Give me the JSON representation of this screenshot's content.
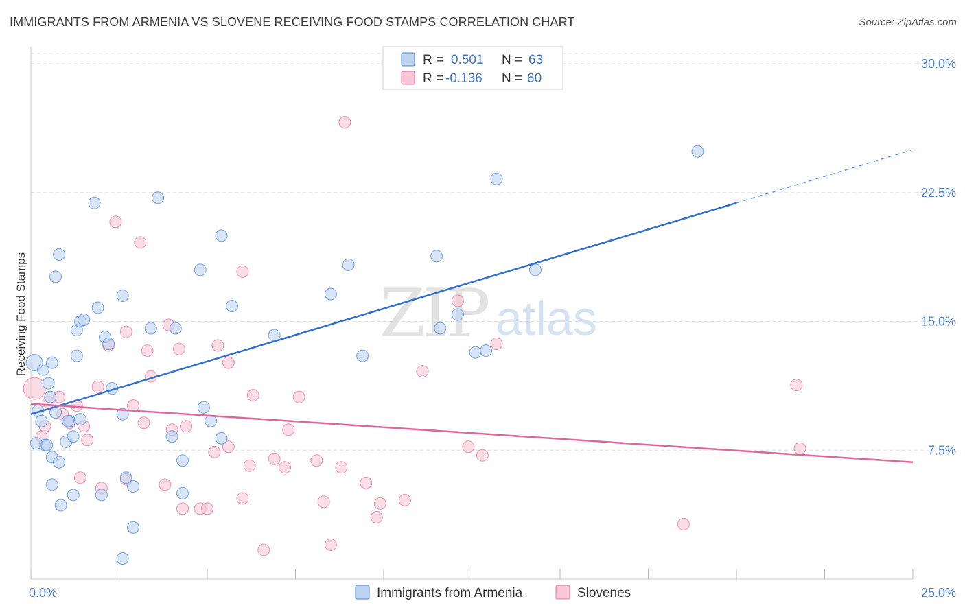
{
  "title": "IMMIGRANTS FROM ARMENIA VS SLOVENE RECEIVING FOOD STAMPS CORRELATION CHART",
  "source": "Source: ZipAtlas.com",
  "watermark": {
    "zip": "ZIP",
    "atlas": "atlas"
  },
  "colors": {
    "blue": "#4a86d8",
    "blue_fill": "#bcd3f2",
    "pink": "#e8709d",
    "pink_fill": "#f8c6d6",
    "grid": "#dddddd",
    "tick_text": "#4a7fd0"
  },
  "legend": {
    "rows": [
      {
        "r_label": "R =",
        "r_value": "0.501",
        "n_label": "N =",
        "n_value": "63"
      },
      {
        "r_label": "R =",
        "r_value": "-0.136",
        "n_label": "N =",
        "n_value": "60"
      }
    ]
  },
  "chart_data": {
    "type": "scatter",
    "xlabel": "",
    "ylabel": "Receiving Food Stamps",
    "xlim": [
      0,
      25
    ],
    "ylim": [
      0,
      31
    ],
    "x_tick_labels": [
      "0.0%",
      "25.0%"
    ],
    "y_ticks": [
      7.5,
      15.0,
      22.5,
      30.0
    ],
    "y_tick_labels": [
      "7.5%",
      "15.0%",
      "22.5%",
      "30.0%"
    ],
    "series": [
      {
        "name": "Immigrants from Armenia",
        "color": "blue",
        "trend": {
          "x0": 0,
          "y0": 9.6,
          "x1": 20.0,
          "y1": 21.9,
          "dash_x1": 25.0,
          "dash_y1": 25.0
        },
        "points": [
          [
            0.1,
            12.6
          ],
          [
            0.2,
            9.8
          ],
          [
            0.3,
            9.2
          ],
          [
            0.35,
            12.2
          ],
          [
            0.4,
            7.8
          ],
          [
            0.45,
            7.8
          ],
          [
            0.5,
            11.4
          ],
          [
            0.55,
            10.6
          ],
          [
            0.6,
            12.6
          ],
          [
            0.6,
            5.5
          ],
          [
            0.7,
            9.7
          ],
          [
            0.6,
            7.1
          ],
          [
            0.8,
            6.8
          ],
          [
            0.85,
            4.3
          ],
          [
            0.8,
            18.9
          ],
          [
            0.7,
            17.6
          ],
          [
            1.0,
            8.0
          ],
          [
            1.1,
            9.2
          ],
          [
            1.2,
            8.3
          ],
          [
            1.2,
            4.9
          ],
          [
            1.3,
            13.0
          ],
          [
            1.3,
            14.5
          ],
          [
            1.4,
            15.0
          ],
          [
            1.4,
            9.3
          ],
          [
            1.5,
            15.1
          ],
          [
            1.8,
            21.9
          ],
          [
            1.9,
            15.8
          ],
          [
            2.0,
            4.9
          ],
          [
            2.1,
            14.1
          ],
          [
            2.2,
            13.7
          ],
          [
            2.3,
            11.1
          ],
          [
            2.6,
            16.5
          ],
          [
            2.6,
            9.6
          ],
          [
            2.7,
            5.9
          ],
          [
            2.9,
            5.4
          ],
          [
            2.9,
            3.0
          ],
          [
            3.4,
            14.6
          ],
          [
            3.6,
            22.2
          ],
          [
            4.0,
            8.3
          ],
          [
            4.1,
            14.6
          ],
          [
            4.3,
            6.9
          ],
          [
            4.3,
            5.0
          ],
          [
            4.8,
            18.0
          ],
          [
            4.9,
            10.0
          ],
          [
            5.1,
            9.2
          ],
          [
            5.4,
            20.0
          ],
          [
            5.4,
            8.2
          ],
          [
            5.7,
            15.9
          ],
          [
            6.9,
            14.2
          ],
          [
            8.5,
            16.6
          ],
          [
            9.0,
            18.3
          ],
          [
            9.4,
            13.0
          ],
          [
            11.5,
            18.8
          ],
          [
            11.6,
            14.6
          ],
          [
            12.1,
            15.4
          ],
          [
            12.6,
            13.2
          ],
          [
            12.9,
            13.3
          ],
          [
            13.2,
            23.3
          ],
          [
            14.3,
            18.0
          ],
          [
            18.9,
            24.9
          ],
          [
            2.6,
            1.2
          ],
          [
            0.15,
            7.9
          ],
          [
            1.05,
            9.2
          ]
        ]
      },
      {
        "name": "Slovenes",
        "color": "pink",
        "trend": {
          "x0": 0,
          "y0": 10.2,
          "x1": 25.0,
          "y1": 6.8
        },
        "points": [
          [
            0.1,
            11.1
          ],
          [
            0.3,
            8.3
          ],
          [
            0.4,
            8.9
          ],
          [
            0.5,
            10.3
          ],
          [
            0.8,
            10.6
          ],
          [
            0.9,
            9.6
          ],
          [
            1.1,
            9.1
          ],
          [
            1.3,
            10.1
          ],
          [
            1.4,
            5.9
          ],
          [
            1.5,
            8.9
          ],
          [
            1.6,
            8.1
          ],
          [
            1.9,
            11.2
          ],
          [
            2.0,
            5.3
          ],
          [
            2.2,
            13.6
          ],
          [
            2.4,
            20.8
          ],
          [
            2.7,
            5.8
          ],
          [
            2.7,
            14.4
          ],
          [
            2.9,
            10.1
          ],
          [
            3.1,
            19.6
          ],
          [
            3.2,
            9.1
          ],
          [
            3.3,
            13.3
          ],
          [
            3.4,
            11.8
          ],
          [
            3.8,
            5.5
          ],
          [
            3.9,
            14.8
          ],
          [
            4.0,
            8.7
          ],
          [
            4.2,
            13.4
          ],
          [
            4.3,
            4.1
          ],
          [
            4.4,
            8.9
          ],
          [
            4.8,
            4.1
          ],
          [
            5.0,
            4.1
          ],
          [
            5.2,
            7.4
          ],
          [
            5.3,
            13.6
          ],
          [
            5.6,
            12.6
          ],
          [
            5.6,
            7.7
          ],
          [
            6.0,
            4.7
          ],
          [
            6.0,
            17.9
          ],
          [
            6.2,
            6.6
          ],
          [
            6.3,
            10.7
          ],
          [
            6.6,
            1.7
          ],
          [
            6.9,
            7.0
          ],
          [
            7.2,
            6.5
          ],
          [
            7.3,
            8.7
          ],
          [
            7.6,
            10.6
          ],
          [
            8.1,
            6.9
          ],
          [
            8.3,
            4.5
          ],
          [
            8.5,
            2.0
          ],
          [
            8.8,
            6.5
          ],
          [
            8.9,
            26.6
          ],
          [
            9.5,
            5.6
          ],
          [
            9.8,
            3.6
          ],
          [
            9.9,
            4.4
          ],
          [
            10.6,
            4.6
          ],
          [
            11.1,
            12.1
          ],
          [
            12.1,
            16.2
          ],
          [
            12.4,
            7.7
          ],
          [
            12.8,
            7.2
          ],
          [
            13.2,
            13.7
          ],
          [
            18.5,
            3.2
          ],
          [
            21.7,
            11.3
          ],
          [
            21.8,
            7.6
          ]
        ]
      }
    ]
  },
  "bottom_legend": [
    {
      "label": "Immigrants from Armenia",
      "color": "blue"
    },
    {
      "label": "Slovenes",
      "color": "pink"
    }
  ]
}
